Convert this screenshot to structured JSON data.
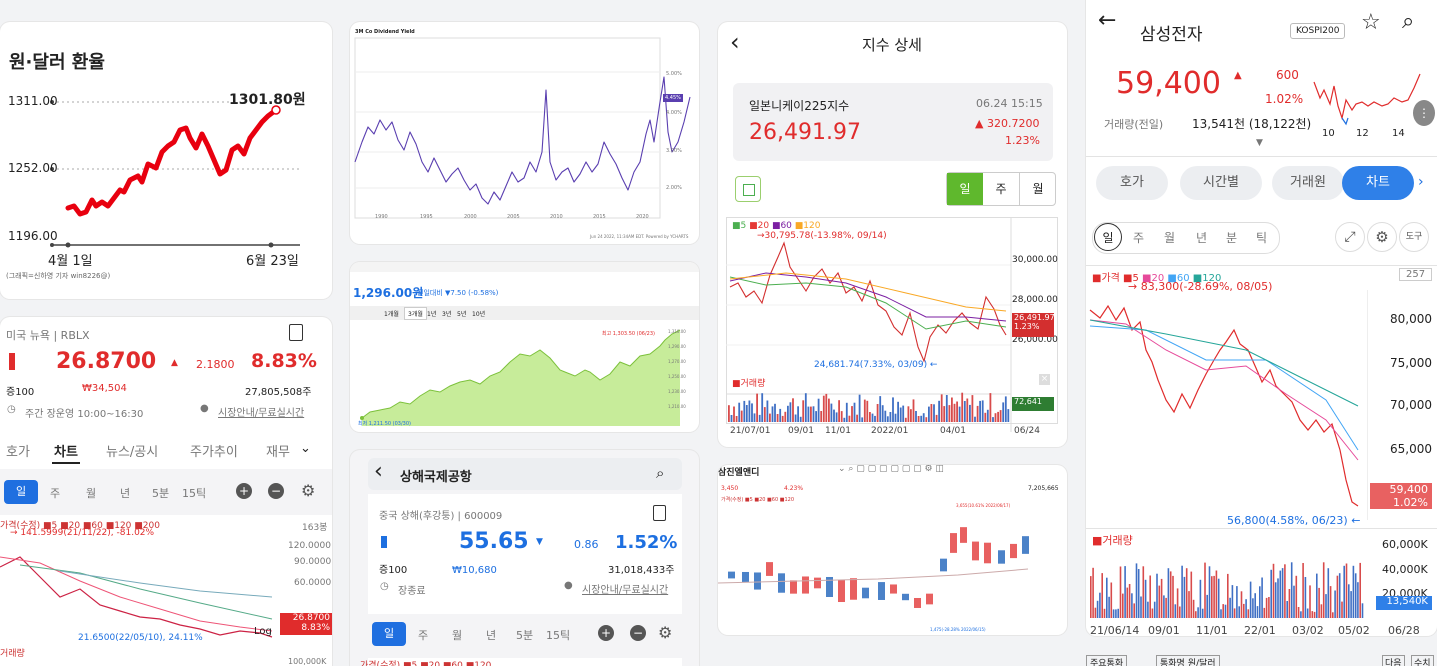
{
  "c1": {
    "title": "원·달러 환율",
    "y_labels": [
      "1311.00",
      "1252.00",
      "1196.00"
    ],
    "value_label": "1301.80원",
    "x_labels": [
      "4월 1일",
      "6월 23일"
    ],
    "source": "(그래픽=신하영 기자 win8226@)",
    "chart_data": {
      "type": "line",
      "x": [
        "4월 1일",
        "6월 23일"
      ],
      "ylim": [
        1196,
        1311
      ],
      "last_value": 1301.8
    }
  },
  "c2": {
    "title": "3M Co Dividend Yield",
    "right_ticks": [
      "5.00%",
      "4.00%",
      "3.00%",
      "2.00%"
    ],
    "badge": "4.45%",
    "x_ticks": [
      "1990",
      "1995",
      "2000",
      "2005",
      "2010",
      "2015",
      "2020"
    ],
    "footer": "Jun 24 2022, 11:34AM EDT. Powered by YCHARTS"
  },
  "c3": {
    "value": "1,296.00원",
    "change": "전일대비 ▼7.50 (-0.58%)",
    "ranges": [
      "1개월",
      "3개월",
      "1년",
      "3년",
      "5년",
      "10년"
    ],
    "high": "최고 1,303.50 (06/23)",
    "low": "최저 1,211.50 (03/30)",
    "y_ticks": [
      "1,310.00",
      "1,290.00",
      "1,270.00",
      "1,250.00",
      "1,230.00",
      "1,210.00"
    ]
  },
  "c4": {
    "back_label": "‹",
    "title": "지수 상세",
    "index_name": "일본니케이225지수",
    "datetime": "06.24 15:15",
    "price": "26,491.97",
    "change": "▲ 320.7200",
    "change_pct": "1.23%",
    "periods": [
      "일",
      "주",
      "월"
    ],
    "legend": [
      "■5",
      "■20",
      "■60",
      "■120"
    ],
    "max_label": "→30,795.78(-13.98%, 09/14)",
    "min_label": "24,681.74(7.33%, 03/09) ←",
    "y_ticks": [
      "30,000.00",
      "28,000.00",
      "26,000.00"
    ],
    "current_tag": "26,491.97",
    "current_pct": "1.23%",
    "volume_label": "■거래량",
    "volume_tag": "72,641",
    "x_ticks": [
      "21/07/01",
      "09/01",
      "11/01",
      "2022/01",
      "04/01",
      "06/24"
    ]
  },
  "c5": {
    "back_label": "←",
    "name": "삼성전자",
    "market": "KOSPI200",
    "price": "59,400",
    "change": "600",
    "change_pct": "1.02%",
    "volume_label": "거래량(전일)",
    "volume_value": "13,541천 (18,122천)",
    "mini_x": [
      "10",
      "12",
      "14"
    ],
    "tabs": [
      "호가",
      "시간별",
      "거래원",
      "차트"
    ],
    "periods": [
      "일",
      "주",
      "월",
      "년",
      "분",
      "틱"
    ],
    "tool_label": "도구",
    "legend": [
      "■가격",
      "■5",
      "■20",
      "■60",
      "■120"
    ],
    "count": "257",
    "max_label": "→ 83,300(-28.69%, 08/05)",
    "min_label": "56,800(4.58%, 06/23) ←",
    "y_ticks": [
      "80,000",
      "75,000",
      "70,000",
      "65,000"
    ],
    "current_tag": "59,400",
    "current_pct": "1.02%",
    "volume_title": "■거래량",
    "vol_ticks": [
      "60,000K",
      "40,000K",
      "20,000K"
    ],
    "vol_tag": "13,540K",
    "x_ticks": [
      "21/06/14",
      "09/01",
      "11/01",
      "22/01",
      "03/02",
      "05/02",
      "06/28"
    ],
    "bottom_bits": [
      "주요통화",
      "통화명 원/달러",
      "다음",
      "수치"
    ]
  },
  "c6": {
    "header": "미국 뉴욕 | RBLX",
    "price": "26.8700",
    "change": "2.1800",
    "change_pct": "8.83%",
    "sub1": "증100",
    "krw": "₩34,504",
    "volume": "27,805,508주",
    "hours": "주간 장운영 10:00~16:30",
    "guide": "시장안내/무료실시간",
    "tabs": [
      "호가",
      "차트",
      "뉴스/공시",
      "주가추이",
      "재무"
    ],
    "periods": [
      "일",
      "주",
      "월",
      "년",
      "5분",
      "15틱"
    ],
    "legend": "가격(수정) ■5 ■20 ■60 ■120 ■200",
    "count": "163봉",
    "max_label": "→ 141.5999(21/11/22), -81.02%",
    "min_label": "21.6500(22/05/10), 24.11%",
    "y_ticks": [
      "120.0000",
      "90.0000",
      "60.0000"
    ],
    "current_tag": "26.8700",
    "current_pct": "8.83%",
    "log_label": "Log",
    "volume_title": "거래량",
    "vol_tick": "100,000K"
  },
  "c7": {
    "back_label": "‹",
    "name": "상해국제공항",
    "header": "중국 상해(후강퉁) | 600009",
    "price": "55.65",
    "change": "0.86",
    "change_pct": "1.52%",
    "sub1": "증100",
    "krw": "₩10,680",
    "volume": "31,018,433주",
    "status": "장종료",
    "guide": "시장안내/무료실시간",
    "periods": [
      "일",
      "주",
      "월",
      "년",
      "5분",
      "15틱"
    ],
    "legend": "가격(수정) ■5 ■20 ■60 ■120"
  },
  "c8": {
    "name": "삼진엘앤디",
    "row": [
      "3,450",
      "4.23%",
      "7,205,665"
    ],
    "legend": "가격(수정) ■5 ■20 ■60 ■120",
    "max_label": "3,655(10.61% 2022/06/17)",
    "min_label": "1,475(-28.28% 2022/06/15)"
  }
}
